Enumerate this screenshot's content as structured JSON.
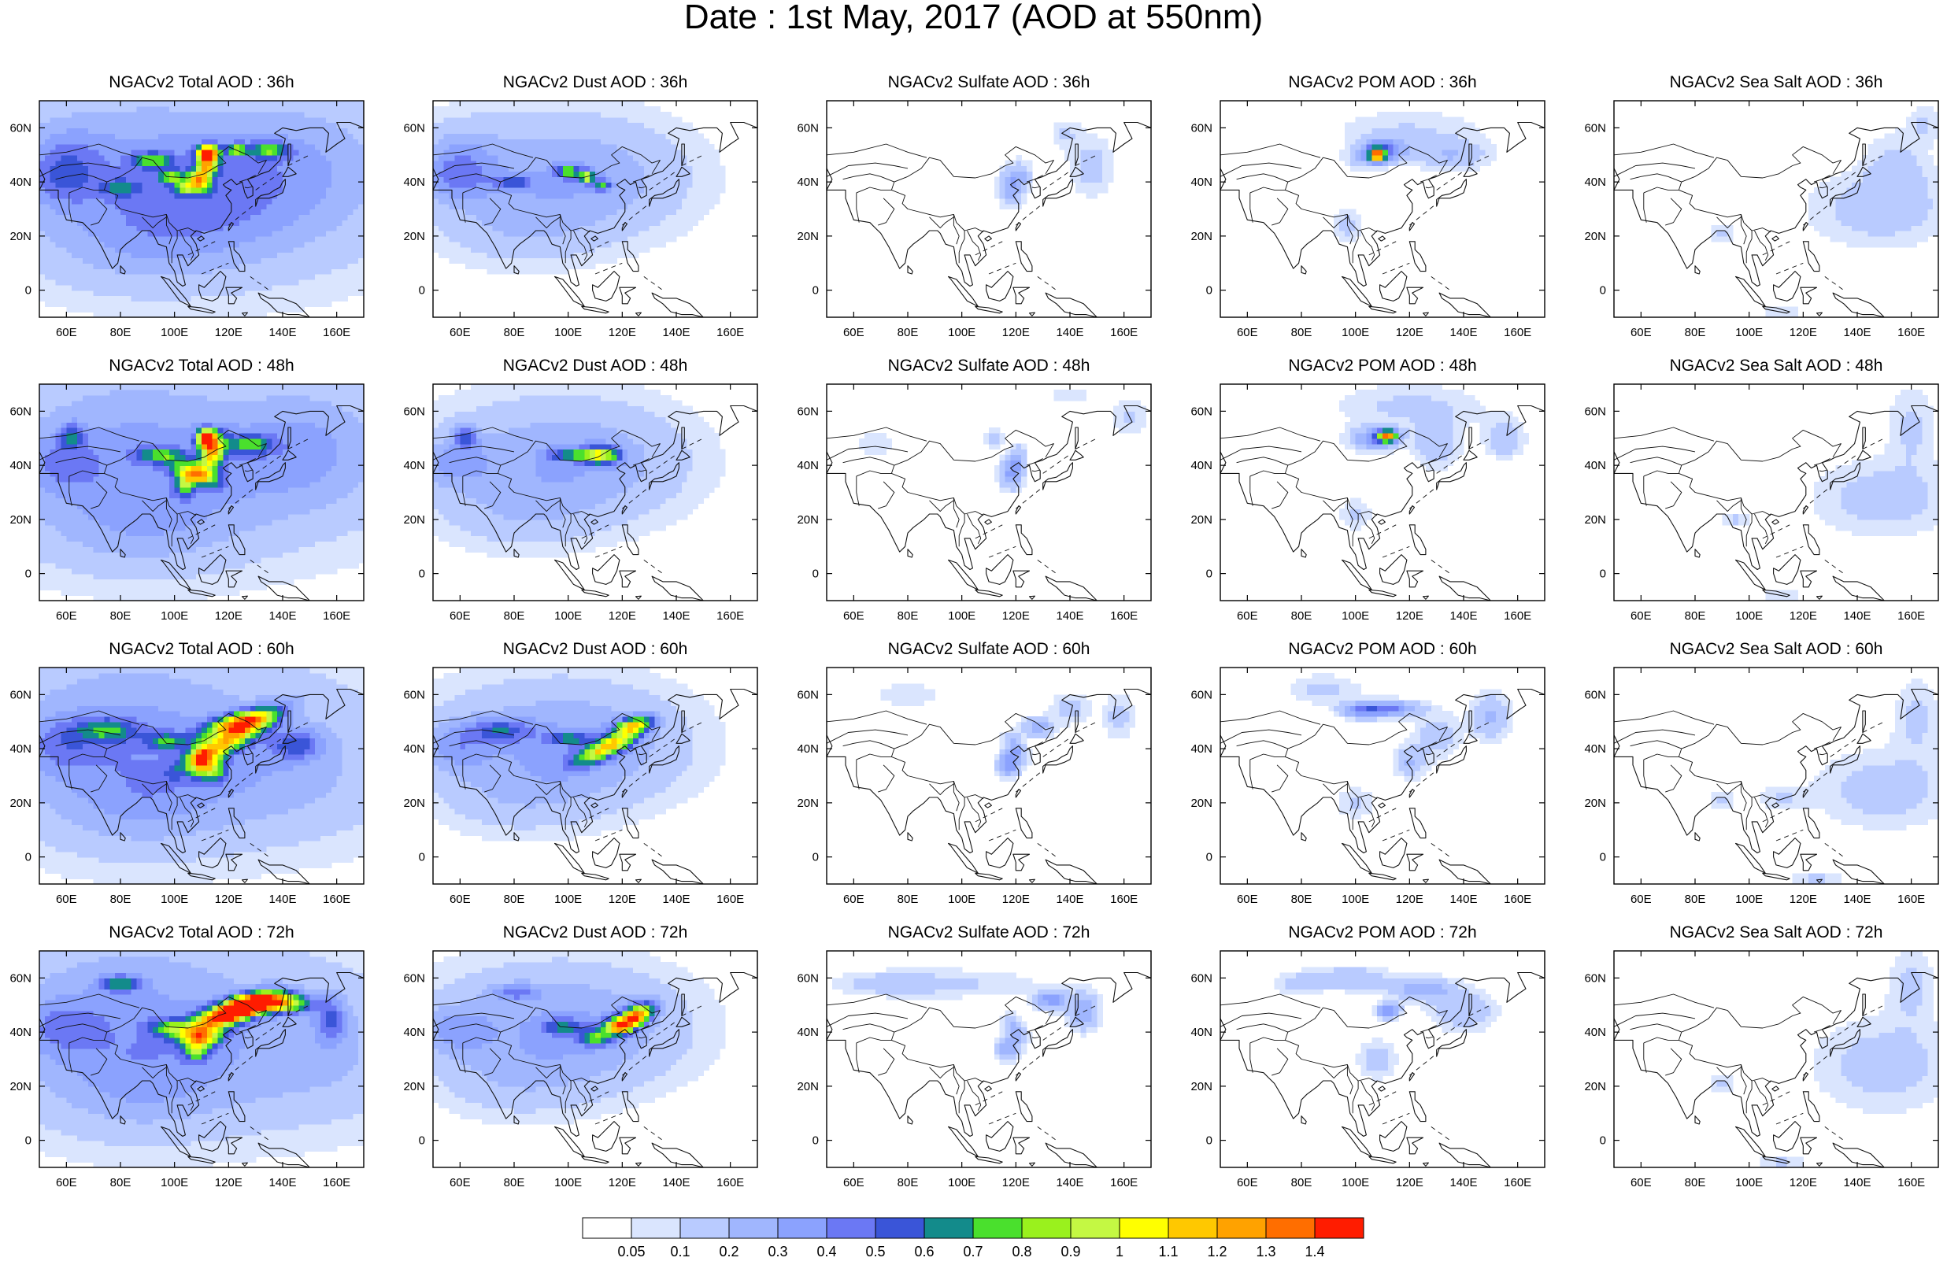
{
  "title": "Date : 1st May, 2017 (AOD at 550nm)",
  "rows": [
    {
      "hour": "36h",
      "titles": [
        "NGACv2 Total AOD : 36h",
        "NGACv2 Dust AOD : 36h",
        "NGACv2 Sulfate AOD : 36h",
        "NGACv2 POM AOD : 36h",
        "NGACv2 Sea Salt AOD : 36h"
      ]
    },
    {
      "hour": "48h",
      "titles": [
        "NGACv2 Total AOD : 48h",
        "NGACv2 Dust AOD : 48h",
        "NGACv2 Sulfate AOD : 48h",
        "NGACv2 POM AOD : 48h",
        "NGACv2 Sea Salt AOD : 48h"
      ]
    },
    {
      "hour": "60h",
      "titles": [
        "NGACv2 Total AOD : 60h",
        "NGACv2 Dust AOD : 60h",
        "NGACv2 Sulfate AOD : 60h",
        "NGACv2 POM AOD : 60h",
        "NGACv2 Sea Salt AOD : 60h"
      ]
    },
    {
      "hour": "72h",
      "titles": [
        "NGACv2 Total AOD : 72h",
        "NGACv2 Dust AOD : 72h",
        "NGACv2 Sulfate AOD : 72h",
        "NGACv2 POM AOD : 72h",
        "NGACv2 Sea Salt  AOD : 72h"
      ]
    }
  ],
  "axes": {
    "lon_range": [
      50,
      170
    ],
    "lat_range": [
      -10,
      70
    ],
    "lon_ticks": [
      60,
      80,
      100,
      120,
      140,
      160
    ],
    "lon_tick_labels": [
      "60E",
      "80E",
      "100E",
      "120E",
      "140E",
      "160E"
    ],
    "lat_ticks": [
      0,
      20,
      40,
      60
    ],
    "lat_tick_labels": [
      "0",
      "20N",
      "40N",
      "60N"
    ]
  },
  "colorbar": {
    "labels": [
      "0.05",
      "0.1",
      "0.2",
      "0.3",
      "0.4",
      "0.5",
      "0.6",
      "0.7",
      "0.8",
      "0.9",
      "1",
      "1.1",
      "1.2",
      "1.3",
      "1.4"
    ],
    "colors": [
      "#ffffff",
      "#dae5fe",
      "#b9cbff",
      "#a0b6fe",
      "#8ba2fe",
      "#6b78f4",
      "#3a55d8",
      "#138b8b",
      "#4ae02d",
      "#9af11d",
      "#c4f843",
      "#ffff00",
      "#ffc800",
      "#ffa200",
      "#ff6e00",
      "#ff1c00"
    ]
  }
}
